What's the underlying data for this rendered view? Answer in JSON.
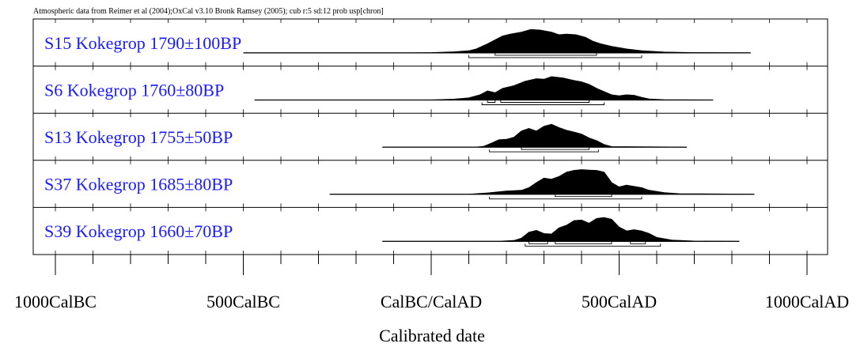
{
  "chart_data": {
    "type": "area",
    "title": "Atmospheric data from Reimer et al (2004);OxCal v3.10 Bronk Ramsey (2005); cub r:5 sd:12 prob usp[chron]",
    "xlabel": "Calibrated date",
    "x_ticks": [
      {
        "value": -1000,
        "label": "1000CalBC"
      },
      {
        "value": -500,
        "label": "500CalBC"
      },
      {
        "value": 0,
        "label": "CalBC/CalAD"
      },
      {
        "value": 500,
        "label": "500CalAD"
      },
      {
        "value": 1000,
        "label": "1000CalAD"
      }
    ],
    "xlim": [
      -1000,
      1000
    ],
    "minor_tick_step": 100,
    "series": [
      {
        "name": "S15 Kokegrop  1790±100BP",
        "range": [
          -500,
          850
        ],
        "density": [
          [
            -500,
            0
          ],
          [
            -50,
            0
          ],
          [
            0,
            0.01
          ],
          [
            60,
            0.04
          ],
          [
            100,
            0.08
          ],
          [
            120,
            0.15
          ],
          [
            150,
            0.35
          ],
          [
            170,
            0.5
          ],
          [
            190,
            0.65
          ],
          [
            210,
            0.72
          ],
          [
            240,
            0.8
          ],
          [
            265,
            0.9
          ],
          [
            290,
            0.88
          ],
          [
            320,
            0.8
          ],
          [
            340,
            0.7
          ],
          [
            360,
            0.72
          ],
          [
            385,
            0.7
          ],
          [
            410,
            0.6
          ],
          [
            430,
            0.45
          ],
          [
            450,
            0.35
          ],
          [
            480,
            0.25
          ],
          [
            520,
            0.15
          ],
          [
            560,
            0.08
          ],
          [
            620,
            0.03
          ],
          [
            700,
            0.01
          ],
          [
            850,
            0
          ]
        ],
        "brackets": [
          {
            "level": 1,
            "ranges": [
              [
                170,
                440
              ]
            ]
          },
          {
            "level": 2,
            "ranges": [
              [
                100,
                560
              ]
            ]
          }
        ]
      },
      {
        "name": "S6 Kokegrop  1760±80BP",
        "range": [
          -470,
          750
        ],
        "density": [
          [
            -470,
            0
          ],
          [
            0,
            0
          ],
          [
            60,
            0.03
          ],
          [
            100,
            0.08
          ],
          [
            130,
            0.2
          ],
          [
            150,
            0.35
          ],
          [
            170,
            0.28
          ],
          [
            190,
            0.45
          ],
          [
            220,
            0.55
          ],
          [
            250,
            0.72
          ],
          [
            280,
            0.82
          ],
          [
            300,
            0.8
          ],
          [
            320,
            0.9
          ],
          [
            350,
            0.85
          ],
          [
            380,
            0.75
          ],
          [
            400,
            0.7
          ],
          [
            420,
            0.6
          ],
          [
            440,
            0.45
          ],
          [
            460,
            0.32
          ],
          [
            480,
            0.2
          ],
          [
            500,
            0.16
          ],
          [
            520,
            0.2
          ],
          [
            540,
            0.18
          ],
          [
            560,
            0.1
          ],
          [
            580,
            0.04
          ],
          [
            620,
            0.01
          ],
          [
            750,
            0
          ]
        ],
        "brackets": [
          {
            "level": 1,
            "ranges": [
              [
                150,
                170
              ],
              [
                185,
                420
              ]
            ]
          },
          {
            "level": 2,
            "ranges": [
              [
                135,
                460
              ]
            ]
          }
        ]
      },
      {
        "name": "S13 Kokegrop  1755±50BP",
        "range": [
          -130,
          680
        ],
        "density": [
          [
            -130,
            0
          ],
          [
            120,
            0
          ],
          [
            140,
            0.03
          ],
          [
            160,
            0.15
          ],
          [
            180,
            0.28
          ],
          [
            200,
            0.3
          ],
          [
            220,
            0.38
          ],
          [
            240,
            0.62
          ],
          [
            260,
            0.72
          ],
          [
            280,
            0.62
          ],
          [
            300,
            0.8
          ],
          [
            320,
            0.88
          ],
          [
            340,
            0.75
          ],
          [
            360,
            0.65
          ],
          [
            380,
            0.58
          ],
          [
            400,
            0.5
          ],
          [
            420,
            0.35
          ],
          [
            440,
            0.25
          ],
          [
            460,
            0.1
          ],
          [
            480,
            0.02
          ],
          [
            680,
            0
          ]
        ],
        "brackets": [
          {
            "level": 1,
            "ranges": [
              [
                240,
                420
              ]
            ]
          },
          {
            "level": 2,
            "ranges": [
              [
                155,
                445
              ]
            ]
          }
        ]
      },
      {
        "name": "S37 Kokegrop  1685±80BP",
        "range": [
          -270,
          860
        ],
        "density": [
          [
            -270,
            0
          ],
          [
            100,
            0
          ],
          [
            150,
            0.05
          ],
          [
            200,
            0.12
          ],
          [
            240,
            0.15
          ],
          [
            260,
            0.25
          ],
          [
            280,
            0.45
          ],
          [
            300,
            0.62
          ],
          [
            320,
            0.58
          ],
          [
            340,
            0.68
          ],
          [
            360,
            0.85
          ],
          [
            380,
            0.92
          ],
          [
            400,
            0.95
          ],
          [
            420,
            0.93
          ],
          [
            440,
            0.92
          ],
          [
            460,
            0.85
          ],
          [
            480,
            0.45
          ],
          [
            500,
            0.28
          ],
          [
            520,
            0.35
          ],
          [
            540,
            0.3
          ],
          [
            560,
            0.25
          ],
          [
            580,
            0.15
          ],
          [
            620,
            0.06
          ],
          [
            660,
            0.02
          ],
          [
            860,
            0
          ]
        ],
        "brackets": [
          {
            "level": 1,
            "ranges": [
              [
                330,
                480
              ]
            ]
          },
          {
            "level": 2,
            "ranges": [
              [
                155,
                560
              ]
            ]
          }
        ]
      },
      {
        "name": "S39 Kokegrop  1660±70BP",
        "range": [
          -130,
          820
        ],
        "density": [
          [
            -130,
            0
          ],
          [
            180,
            0
          ],
          [
            220,
            0.03
          ],
          [
            240,
            0.12
          ],
          [
            260,
            0.35
          ],
          [
            280,
            0.42
          ],
          [
            300,
            0.3
          ],
          [
            320,
            0.28
          ],
          [
            340,
            0.52
          ],
          [
            360,
            0.62
          ],
          [
            380,
            0.8
          ],
          [
            400,
            0.82
          ],
          [
            420,
            0.7
          ],
          [
            440,
            0.88
          ],
          [
            460,
            0.92
          ],
          [
            480,
            0.85
          ],
          [
            500,
            0.55
          ],
          [
            520,
            0.4
          ],
          [
            540,
            0.45
          ],
          [
            560,
            0.4
          ],
          [
            580,
            0.3
          ],
          [
            600,
            0.15
          ],
          [
            640,
            0.05
          ],
          [
            700,
            0.01
          ],
          [
            820,
            0
          ]
        ],
        "brackets": [
          {
            "level": 1,
            "ranges": [
              [
                260,
                310
              ],
              [
                330,
                480
              ],
              [
                530,
                570
              ]
            ]
          },
          {
            "level": 2,
            "ranges": [
              [
                250,
                610
              ]
            ]
          }
        ]
      }
    ]
  }
}
